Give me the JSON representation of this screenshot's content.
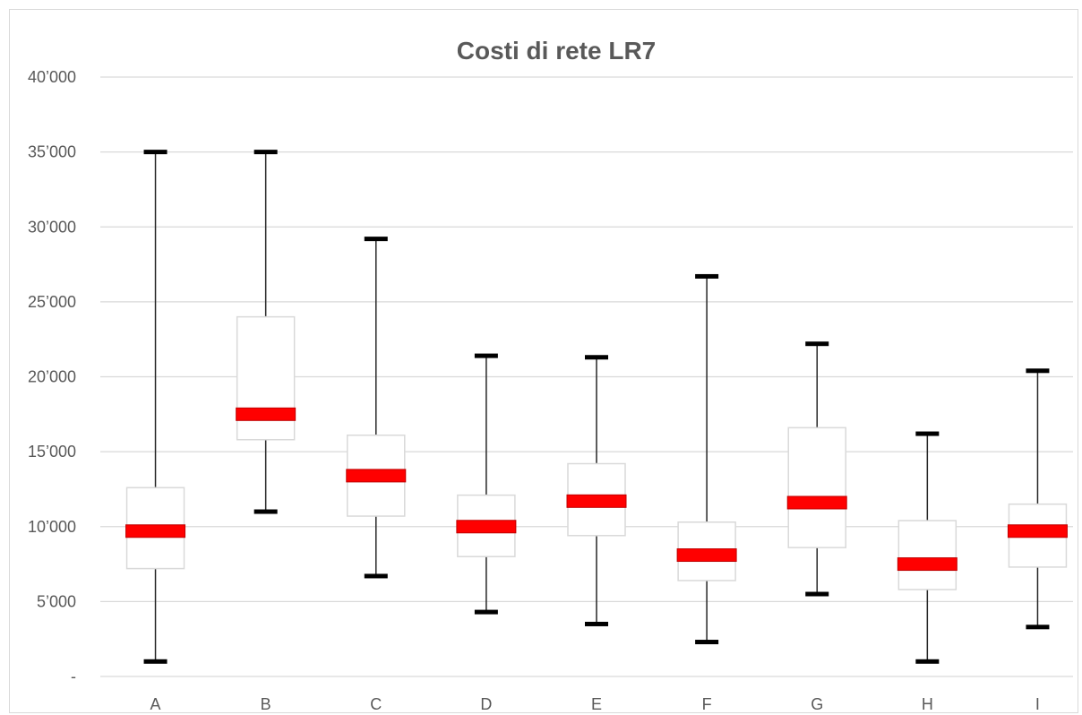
{
  "chart_data": {
    "type": "box",
    "title": "Costi di rete LR7",
    "xlabel": "",
    "ylabel": "",
    "ylim": [
      0,
      40000
    ],
    "y_ticks": [
      {
        "value": 0,
        "label": "-"
      },
      {
        "value": 5000,
        "label": "5’000"
      },
      {
        "value": 10000,
        "label": "10’000"
      },
      {
        "value": 15000,
        "label": "15’000"
      },
      {
        "value": 20000,
        "label": "20’000"
      },
      {
        "value": 25000,
        "label": "25’000"
      },
      {
        "value": 30000,
        "label": "30’000"
      },
      {
        "value": 35000,
        "label": "35’000"
      },
      {
        "value": 40000,
        "label": "40’000"
      }
    ],
    "grid": true,
    "categories": [
      "A",
      "B",
      "C",
      "D",
      "E",
      "F",
      "G",
      "H",
      "I"
    ],
    "boxes": [
      {
        "category": "A",
        "min": 1000,
        "q1": 7200,
        "median": 9700,
        "q3": 12600,
        "max": 35000
      },
      {
        "category": "B",
        "min": 11000,
        "q1": 15800,
        "median": 17500,
        "q3": 24000,
        "max": 35000
      },
      {
        "category": "C",
        "min": 6700,
        "q1": 10700,
        "median": 13400,
        "q3": 16100,
        "max": 29200
      },
      {
        "category": "D",
        "min": 4300,
        "q1": 8000,
        "median": 10000,
        "q3": 12100,
        "max": 21400
      },
      {
        "category": "E",
        "min": 3500,
        "q1": 9400,
        "median": 11700,
        "q3": 14200,
        "max": 21300
      },
      {
        "category": "F",
        "min": 2300,
        "q1": 6400,
        "median": 8100,
        "q3": 10300,
        "max": 26700
      },
      {
        "category": "G",
        "min": 5500,
        "q1": 8600,
        "median": 11600,
        "q3": 16600,
        "max": 22200
      },
      {
        "category": "H",
        "min": 1000,
        "q1": 5800,
        "median": 7500,
        "q3": 10400,
        "max": 16200
      },
      {
        "category": "I",
        "min": 3300,
        "q1": 7300,
        "median": 9700,
        "q3": 11500,
        "max": 20400
      }
    ],
    "colors": {
      "median": "#ff0000",
      "box_border": "#d9d9d9",
      "whisker": "#262626",
      "grid": "#d9d9d9",
      "text": "#595959"
    }
  }
}
